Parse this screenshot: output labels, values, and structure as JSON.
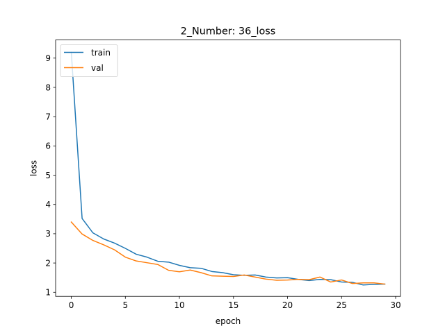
{
  "chart_data": {
    "type": "line",
    "title": "2_Number: 36_loss",
    "xlabel": "epoch",
    "ylabel": "loss",
    "xlim": [
      -1.45,
      30.45
    ],
    "ylim": [
      0.86,
      9.62
    ],
    "xticks": [
      0,
      5,
      10,
      15,
      20,
      25,
      30
    ],
    "yticks": [
      1,
      2,
      3,
      4,
      5,
      6,
      7,
      8,
      9
    ],
    "grid": false,
    "legend_position": "upper-left",
    "x": [
      0,
      1,
      2,
      3,
      4,
      5,
      6,
      7,
      8,
      9,
      10,
      11,
      12,
      13,
      14,
      15,
      16,
      17,
      18,
      19,
      20,
      21,
      22,
      23,
      24,
      25,
      26,
      27,
      28,
      29
    ],
    "series": [
      {
        "name": "train",
        "color": "#1f77b4",
        "values": [
          9.2,
          3.52,
          3.03,
          2.82,
          2.68,
          2.5,
          2.3,
          2.2,
          2.06,
          2.03,
          1.92,
          1.84,
          1.82,
          1.71,
          1.67,
          1.6,
          1.58,
          1.59,
          1.52,
          1.49,
          1.5,
          1.44,
          1.4,
          1.44,
          1.43,
          1.35,
          1.34,
          1.25,
          1.27,
          1.28
        ]
      },
      {
        "name": "val",
        "color": "#ff7f0e",
        "values": [
          3.4,
          2.99,
          2.77,
          2.62,
          2.45,
          2.2,
          2.07,
          2.01,
          1.95,
          1.75,
          1.7,
          1.76,
          1.67,
          1.56,
          1.55,
          1.54,
          1.59,
          1.52,
          1.45,
          1.41,
          1.42,
          1.44,
          1.43,
          1.52,
          1.35,
          1.42,
          1.3,
          1.32,
          1.32,
          1.28
        ]
      }
    ]
  }
}
